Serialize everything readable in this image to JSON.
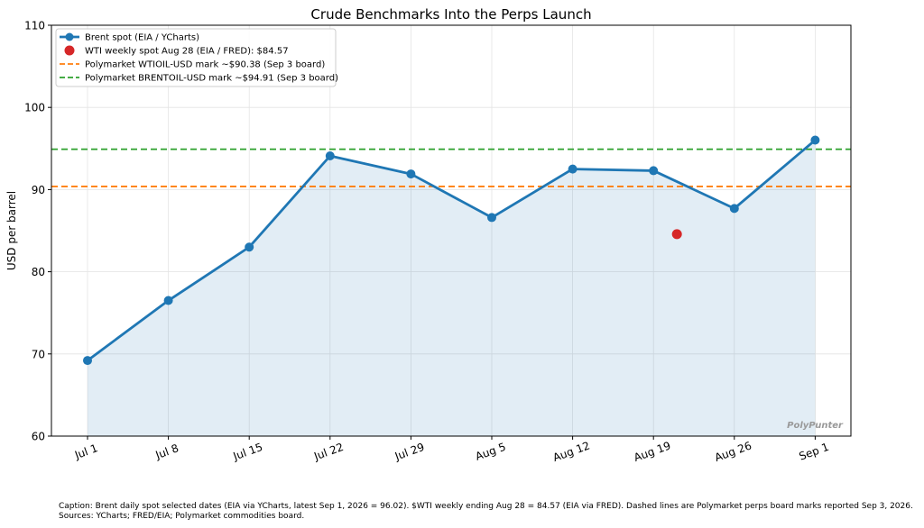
{
  "chart_data": {
    "type": "line",
    "title": "Crude Benchmarks Into the Perps Launch",
    "xlabel": "",
    "ylabel": "USD per barrel",
    "ylim": [
      60,
      110
    ],
    "yticks": [
      60,
      70,
      80,
      90,
      100,
      110
    ],
    "categories": [
      "Jul 1",
      "Jul 8",
      "Jul 15",
      "Jul 22",
      "Jul 29",
      "Aug 5",
      "Aug 12",
      "Aug 19",
      "Aug 26",
      "Sep 1"
    ],
    "series": [
      {
        "name": "Brent spot (EIA / YCharts)",
        "color": "#1f77b4",
        "values": [
          69.2,
          76.5,
          83.0,
          94.1,
          91.9,
          86.6,
          92.5,
          92.3,
          87.7,
          96.02
        ],
        "fill": true
      }
    ],
    "points": [
      {
        "name": "WTI weekly spot Aug 28 (EIA / FRED): $84.57",
        "x": "Aug 28",
        "x_index": 7.29,
        "y": 84.57,
        "color": "#d62728"
      }
    ],
    "hlines": [
      {
        "name": "Polymarket WTIOIL-USD mark ~$90.38 (Sep 3 board)",
        "y": 90.38,
        "color": "#ff7f0e",
        "style": "dashed"
      },
      {
        "name": "Polymarket BRENTOIL-USD mark ~$94.91 (Sep 3 board)",
        "y": 94.91,
        "color": "#2ca02c",
        "style": "dashed"
      }
    ],
    "grid": true,
    "legend_position": "top-left",
    "watermark": "PolyPunter"
  },
  "caption": "Caption: Brent daily spot selected dates (EIA via YCharts, latest Sep 1, 2026 = 96.02). $WTI weekly ending Aug 28 = 84.57 (EIA via FRED). Dashed lines are Polymarket perps board marks reported Sep 3, 2026. Sources: YCharts; FRED/EIA; Polymarket commodities board."
}
